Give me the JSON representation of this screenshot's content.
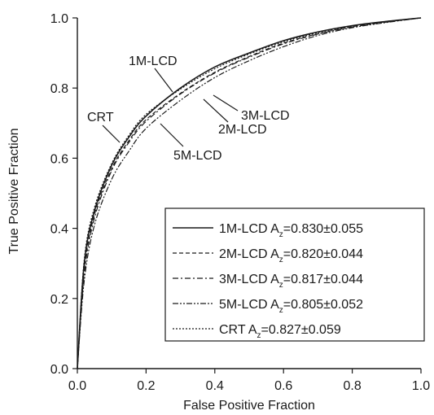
{
  "chart_data": {
    "type": "line",
    "title": "",
    "xlabel": "False Positive Fraction",
    "ylabel": "True Positive Fraction",
    "xlim": [
      0.0,
      1.0
    ],
    "ylim": [
      0.0,
      1.0
    ],
    "x_ticks": [
      "0.0",
      "0.2",
      "0.4",
      "0.6",
      "0.8",
      "1.0"
    ],
    "y_ticks": [
      "0.0",
      "0.2",
      "0.4",
      "0.6",
      "0.8",
      "1.0"
    ],
    "grid": false,
    "legend_position": "bottom-right",
    "x": [
      0.0,
      0.02,
      0.05,
      0.1,
      0.15,
      0.2,
      0.3,
      0.4,
      0.5,
      0.6,
      0.7,
      0.8,
      0.9,
      1.0
    ],
    "series": [
      {
        "label": "1M-LCD",
        "legend": {
          "name": "1M-LCD",
          "az_prefix": "A",
          "az_sub": "z",
          "az_value": "=0.830±0.055"
        },
        "style": "solid",
        "values": [
          0.0,
          0.3,
          0.45,
          0.58,
          0.66,
          0.72,
          0.8,
          0.86,
          0.9,
          0.935,
          0.96,
          0.978,
          0.99,
          1.0
        ]
      },
      {
        "label": "2M-LCD",
        "legend": {
          "name": "2M-LCD",
          "az_prefix": "A",
          "az_sub": "z",
          "az_value": "=0.820±0.044"
        },
        "style": "dashed",
        "values": [
          0.0,
          0.28,
          0.44,
          0.57,
          0.65,
          0.71,
          0.785,
          0.845,
          0.89,
          0.928,
          0.955,
          0.975,
          0.989,
          1.0
        ]
      },
      {
        "label": "3M-LCD",
        "legend": {
          "name": "3M-LCD",
          "az_prefix": "A",
          "az_sub": "z",
          "az_value": "=0.817±0.044"
        },
        "style": "dashdot",
        "values": [
          0.0,
          0.27,
          0.43,
          0.565,
          0.645,
          0.705,
          0.783,
          0.843,
          0.888,
          0.926,
          0.954,
          0.974,
          0.988,
          1.0
        ]
      },
      {
        "label": "5M-LCD",
        "legend": {
          "name": "5M-LCD",
          "az_prefix": "A",
          "az_sub": "z",
          "az_value": "=0.805±0.052"
        },
        "style": "dashdotdot",
        "values": [
          0.0,
          0.25,
          0.41,
          0.54,
          0.62,
          0.685,
          0.765,
          0.83,
          0.878,
          0.918,
          0.95,
          0.972,
          0.987,
          1.0
        ]
      },
      {
        "label": "CRT",
        "legend": {
          "name": "CRT",
          "az_prefix": "A",
          "az_sub": "z",
          "az_value": "=0.827±0.059"
        },
        "style": "dotted",
        "values": [
          0.0,
          0.31,
          0.46,
          0.585,
          0.665,
          0.725,
          0.797,
          0.855,
          0.897,
          0.932,
          0.958,
          0.977,
          0.99,
          1.0
        ]
      }
    ],
    "annotations": [
      "1M-LCD",
      "CRT",
      "3M-LCD",
      "2M-LCD",
      "5M-LCD"
    ]
  }
}
